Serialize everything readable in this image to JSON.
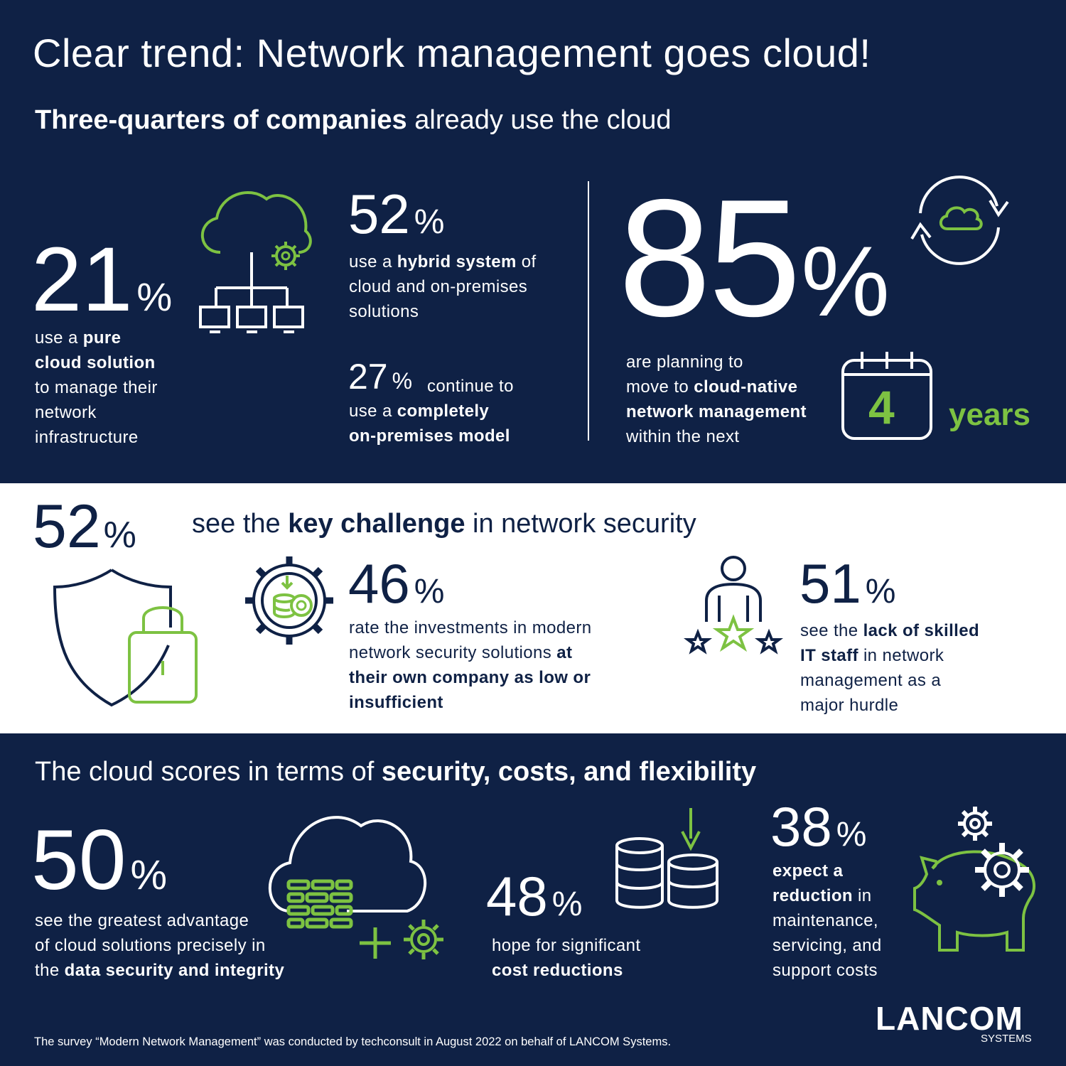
{
  "title": "Clear trend: Network management goes cloud!",
  "section1": {
    "heading_bold": "Three-quarters of companies",
    "heading_rest": " already use the cloud",
    "stat_pure": {
      "value": "21",
      "unit": "%",
      "t1": "use a ",
      "b1": "pure",
      "b2": "cloud solution",
      "t2": "to manage their",
      "t3": "network",
      "t4": "infrastructure"
    },
    "stat_hybrid": {
      "value": "52",
      "unit": "%",
      "t1": "use a ",
      "b1": "hybrid system",
      "t2": " of",
      "t3": "cloud and on-premises",
      "t4": "solutions"
    },
    "stat_onprem": {
      "value": "27",
      "unit": "%",
      "t1": "continue to",
      "t2": "use a ",
      "b1": "completely",
      "b2": "on-premises model"
    },
    "stat_plan": {
      "value": "85",
      "unit": "%",
      "t1": "are planning to",
      "t2": "move to ",
      "b1": "cloud-native",
      "b2": "network management",
      "t3": "within the next",
      "calendar_number": "4",
      "years": "years"
    }
  },
  "section2": {
    "stat_security": {
      "value": "52",
      "unit": "%",
      "t1": "see the ",
      "b1": "key challenge",
      "t2": " in network security"
    },
    "stat_invest": {
      "value": "46",
      "unit": "%",
      "t1": "rate the investments in modern",
      "t2": "network security solutions ",
      "b1": "at",
      "b2": "their own company as low or",
      "b3": "insufficient"
    },
    "stat_staff": {
      "value": "51",
      "unit": "%",
      "t1": "see the ",
      "b1": "lack of skilled",
      "b2": "IT staff",
      "t2": " in network",
      "t3": "management as a",
      "t4": "major hurdle"
    }
  },
  "section3": {
    "heading_rest": "The cloud scores in terms of ",
    "heading_bold": "security, costs, and flexibility",
    "stat_data": {
      "value": "50",
      "unit": "%",
      "t1": "see the greatest advantage",
      "t2": "of cloud solutions precisely in",
      "t3": "the ",
      "b1": "data security and integrity"
    },
    "stat_cost": {
      "value": "48",
      "unit": "%",
      "t1": "hope for significant",
      "b1": "cost reductions"
    },
    "stat_maint": {
      "value": "38",
      "unit": "%",
      "b1": "expect a",
      "b2": "reduction",
      "t1": " in",
      "t2": "maintenance,",
      "t3": "servicing, and",
      "t4": "support costs"
    },
    "footnote": "The survey “Modern Network Management” was conducted by techconsult in August 2022 on behalf of LANCOM Systems.",
    "logo_main": "LANCOM",
    "logo_sub": "SYSTEMS"
  },
  "colors": {
    "navy": "#0f2145",
    "green": "#7dc242",
    "white": "#ffffff"
  },
  "icons": [
    "cloud-network-icon",
    "cloud-sync-icon",
    "calendar-icon",
    "shield-lock-icon",
    "gear-coins-icon",
    "person-stars-icon",
    "cloud-firewall-icon",
    "coins-download-icon",
    "piggy-bank-gears-icon"
  ]
}
